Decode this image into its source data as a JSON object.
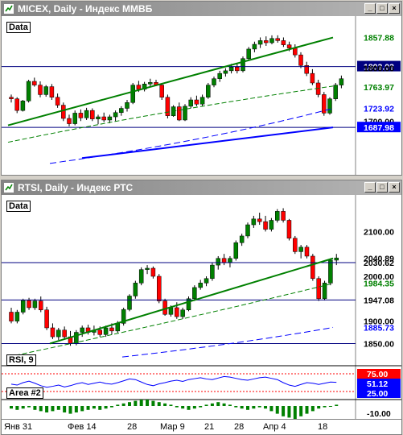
{
  "window1": {
    "title": "MICEX, Daily - Индекс ММВБ",
    "pane_label": "Data",
    "price_labels": [
      "1857.88",
      "1803.03",
      "1800.00",
      "1780.60",
      "1763.97",
      "1723.92",
      "1700.00",
      "1687.98"
    ],
    "label_colors": [
      "#008000",
      "#ffffff",
      "#000000",
      "#ffffff",
      "#008000",
      "#0000ff",
      "#000000",
      "#ffffff"
    ],
    "label_bgs": [
      "#ffffff",
      "#000080",
      "#ffffff",
      "#ffffff",
      "#ffffff",
      "#ffffff",
      "#ffffff",
      "#0000ff"
    ]
  },
  "window2": {
    "title": "RTSI, Daily - Индекс РТС",
    "pane_label": "Data",
    "price_labels": [
      "2100.00",
      "2040.89",
      "2030.62",
      "2000.00",
      "1984.35",
      "1947.08",
      "1900.00",
      "1885.73",
      "1850.00"
    ],
    "rsi_label": "RSI, 9",
    "rsi_levels": [
      "75.00",
      "51.12",
      "25.00"
    ],
    "area_label": "Area #2",
    "area_levels": [
      "-10.00"
    ]
  },
  "xaxis": {
    "ticks": [
      "Янв 31",
      "Фев 14",
      "28",
      "Мар 9",
      "21",
      "28",
      "Апр 4",
      "18"
    ]
  },
  "colors": {
    "up": "#008000",
    "down": "#ff0000",
    "trend": "#008000",
    "ma_long": "#0000ff",
    "level": "#000080",
    "rsi": "#0000ff"
  },
  "chart_data": [
    {
      "type": "candlestick",
      "title": "MICEX, Daily - Индекс ММВБ",
      "ylim": [
        1670,
        1880
      ],
      "candles": [
        [
          1745,
          1750,
          1735,
          1742
        ],
        [
          1742,
          1745,
          1715,
          1720
        ],
        [
          1720,
          1740,
          1718,
          1738
        ],
        [
          1738,
          1778,
          1735,
          1775
        ],
        [
          1775,
          1782,
          1765,
          1768
        ],
        [
          1768,
          1775,
          1745,
          1750
        ],
        [
          1750,
          1768,
          1746,
          1765
        ],
        [
          1765,
          1770,
          1740,
          1745
        ],
        [
          1745,
          1752,
          1725,
          1730
        ],
        [
          1730,
          1735,
          1700,
          1705
        ],
        [
          1705,
          1712,
          1690,
          1695
        ],
        [
          1695,
          1720,
          1692,
          1715
        ],
        [
          1715,
          1722,
          1700,
          1706
        ],
        [
          1706,
          1725,
          1702,
          1720
        ],
        [
          1720,
          1724,
          1700,
          1704
        ],
        [
          1704,
          1712,
          1694,
          1708
        ],
        [
          1708,
          1716,
          1698,
          1702
        ],
        [
          1702,
          1712,
          1696,
          1708
        ],
        [
          1708,
          1720,
          1700,
          1716
        ],
        [
          1716,
          1728,
          1710,
          1724
        ],
        [
          1724,
          1740,
          1718,
          1735
        ],
        [
          1735,
          1772,
          1732,
          1768
        ],
        [
          1768,
          1776,
          1755,
          1760
        ],
        [
          1760,
          1774,
          1756,
          1770
        ],
        [
          1770,
          1780,
          1764,
          1773
        ],
        [
          1773,
          1778,
          1766,
          1768
        ],
        [
          1768,
          1772,
          1740,
          1745
        ],
        [
          1745,
          1750,
          1705,
          1710
        ],
        [
          1710,
          1730,
          1708,
          1727
        ],
        [
          1727,
          1735,
          1700,
          1702
        ],
        [
          1702,
          1732,
          1700,
          1728
        ],
        [
          1728,
          1745,
          1724,
          1740
        ],
        [
          1740,
          1748,
          1728,
          1732
        ],
        [
          1732,
          1750,
          1728,
          1745
        ],
        [
          1745,
          1772,
          1742,
          1768
        ],
        [
          1768,
          1784,
          1764,
          1780
        ],
        [
          1780,
          1795,
          1774,
          1790
        ],
        [
          1790,
          1800,
          1784,
          1795
        ],
        [
          1795,
          1808,
          1790,
          1802
        ],
        [
          1802,
          1810,
          1790,
          1795
        ],
        [
          1795,
          1822,
          1792,
          1818
        ],
        [
          1818,
          1840,
          1814,
          1836
        ],
        [
          1836,
          1850,
          1830,
          1845
        ],
        [
          1845,
          1858,
          1838,
          1852
        ],
        [
          1852,
          1860,
          1842,
          1848
        ],
        [
          1848,
          1862,
          1845,
          1856
        ],
        [
          1856,
          1862,
          1848,
          1852
        ],
        [
          1852,
          1858,
          1840,
          1844
        ],
        [
          1844,
          1850,
          1832,
          1838
        ],
        [
          1838,
          1845,
          1820,
          1825
        ],
        [
          1825,
          1830,
          1800,
          1805
        ],
        [
          1805,
          1812,
          1785,
          1790
        ],
        [
          1790,
          1798,
          1768,
          1772
        ],
        [
          1772,
          1778,
          1745,
          1750
        ],
        [
          1750,
          1755,
          1710,
          1715
        ],
        [
          1715,
          1745,
          1712,
          1742
        ],
        [
          1742,
          1772,
          1738,
          1768
        ],
        [
          1768,
          1786,
          1762,
          1780
        ]
      ]
    },
    {
      "type": "candlestick",
      "title": "RTSI, Daily - Индекс РТС",
      "ylim": [
        1840,
        2160
      ],
      "candles": [
        [
          1920,
          1930,
          1895,
          1900
        ],
        [
          1900,
          1925,
          1895,
          1920
        ],
        [
          1920,
          1950,
          1915,
          1946
        ],
        [
          1946,
          1952,
          1925,
          1930
        ],
        [
          1930,
          1950,
          1925,
          1945
        ],
        [
          1945,
          1955,
          1920,
          1925
        ],
        [
          1925,
          1932,
          1880,
          1885
        ],
        [
          1885,
          1895,
          1860,
          1865
        ],
        [
          1865,
          1885,
          1858,
          1880
        ],
        [
          1880,
          1888,
          1860,
          1865
        ],
        [
          1865,
          1878,
          1845,
          1850
        ],
        [
          1850,
          1880,
          1846,
          1875
        ],
        [
          1875,
          1890,
          1865,
          1885
        ],
        [
          1885,
          1892,
          1870,
          1875
        ],
        [
          1875,
          1890,
          1868,
          1880
        ],
        [
          1880,
          1888,
          1865,
          1870
        ],
        [
          1870,
          1890,
          1865,
          1885
        ],
        [
          1885,
          1895,
          1870,
          1878
        ],
        [
          1878,
          1900,
          1874,
          1895
        ],
        [
          1895,
          1930,
          1890,
          1926
        ],
        [
          1926,
          1960,
          1922,
          1956
        ],
        [
          1956,
          1990,
          1950,
          1985
        ],
        [
          1985,
          2020,
          1980,
          2015
        ],
        [
          2015,
          2025,
          2005,
          2018
        ],
        [
          2018,
          2022,
          1995,
          2000
        ],
        [
          2000,
          2005,
          1940,
          1945
        ],
        [
          1945,
          1950,
          1912,
          1915
        ],
        [
          1915,
          1935,
          1910,
          1930
        ],
        [
          1930,
          1942,
          1905,
          1910
        ],
        [
          1910,
          1930,
          1905,
          1925
        ],
        [
          1925,
          1955,
          1922,
          1950
        ],
        [
          1950,
          1980,
          1945,
          1975
        ],
        [
          1975,
          1992,
          1970,
          1985
        ],
        [
          1985,
          2000,
          1978,
          1995
        ],
        [
          1995,
          2030,
          1990,
          2025
        ],
        [
          2025,
          2045,
          2015,
          2040
        ],
        [
          2040,
          2050,
          2025,
          2030
        ],
        [
          2030,
          2045,
          2020,
          2040
        ],
        [
          2040,
          2080,
          2035,
          2075
        ],
        [
          2075,
          2095,
          2068,
          2090
        ],
        [
          2090,
          2120,
          2085,
          2115
        ],
        [
          2115,
          2135,
          2108,
          2128
        ],
        [
          2128,
          2142,
          2115,
          2122
        ],
        [
          2122,
          2135,
          2100,
          2105
        ],
        [
          2105,
          2130,
          2100,
          2125
        ],
        [
          2125,
          2150,
          2120,
          2145
        ],
        [
          2145,
          2152,
          2120,
          2125
        ],
        [
          2125,
          2128,
          2080,
          2085
        ],
        [
          2085,
          2090,
          2050,
          2055
        ],
        [
          2055,
          2070,
          2040,
          2065
        ],
        [
          2065,
          2070,
          2040,
          2045
        ],
        [
          2045,
          2050,
          1990,
          1995
        ],
        [
          1995,
          2000,
          1945,
          1950
        ],
        [
          1950,
          1990,
          1946,
          1985
        ],
        [
          1985,
          2040,
          1980,
          2036
        ],
        [
          2036,
          2050,
          2025,
          2041
        ]
      ]
    }
  ]
}
